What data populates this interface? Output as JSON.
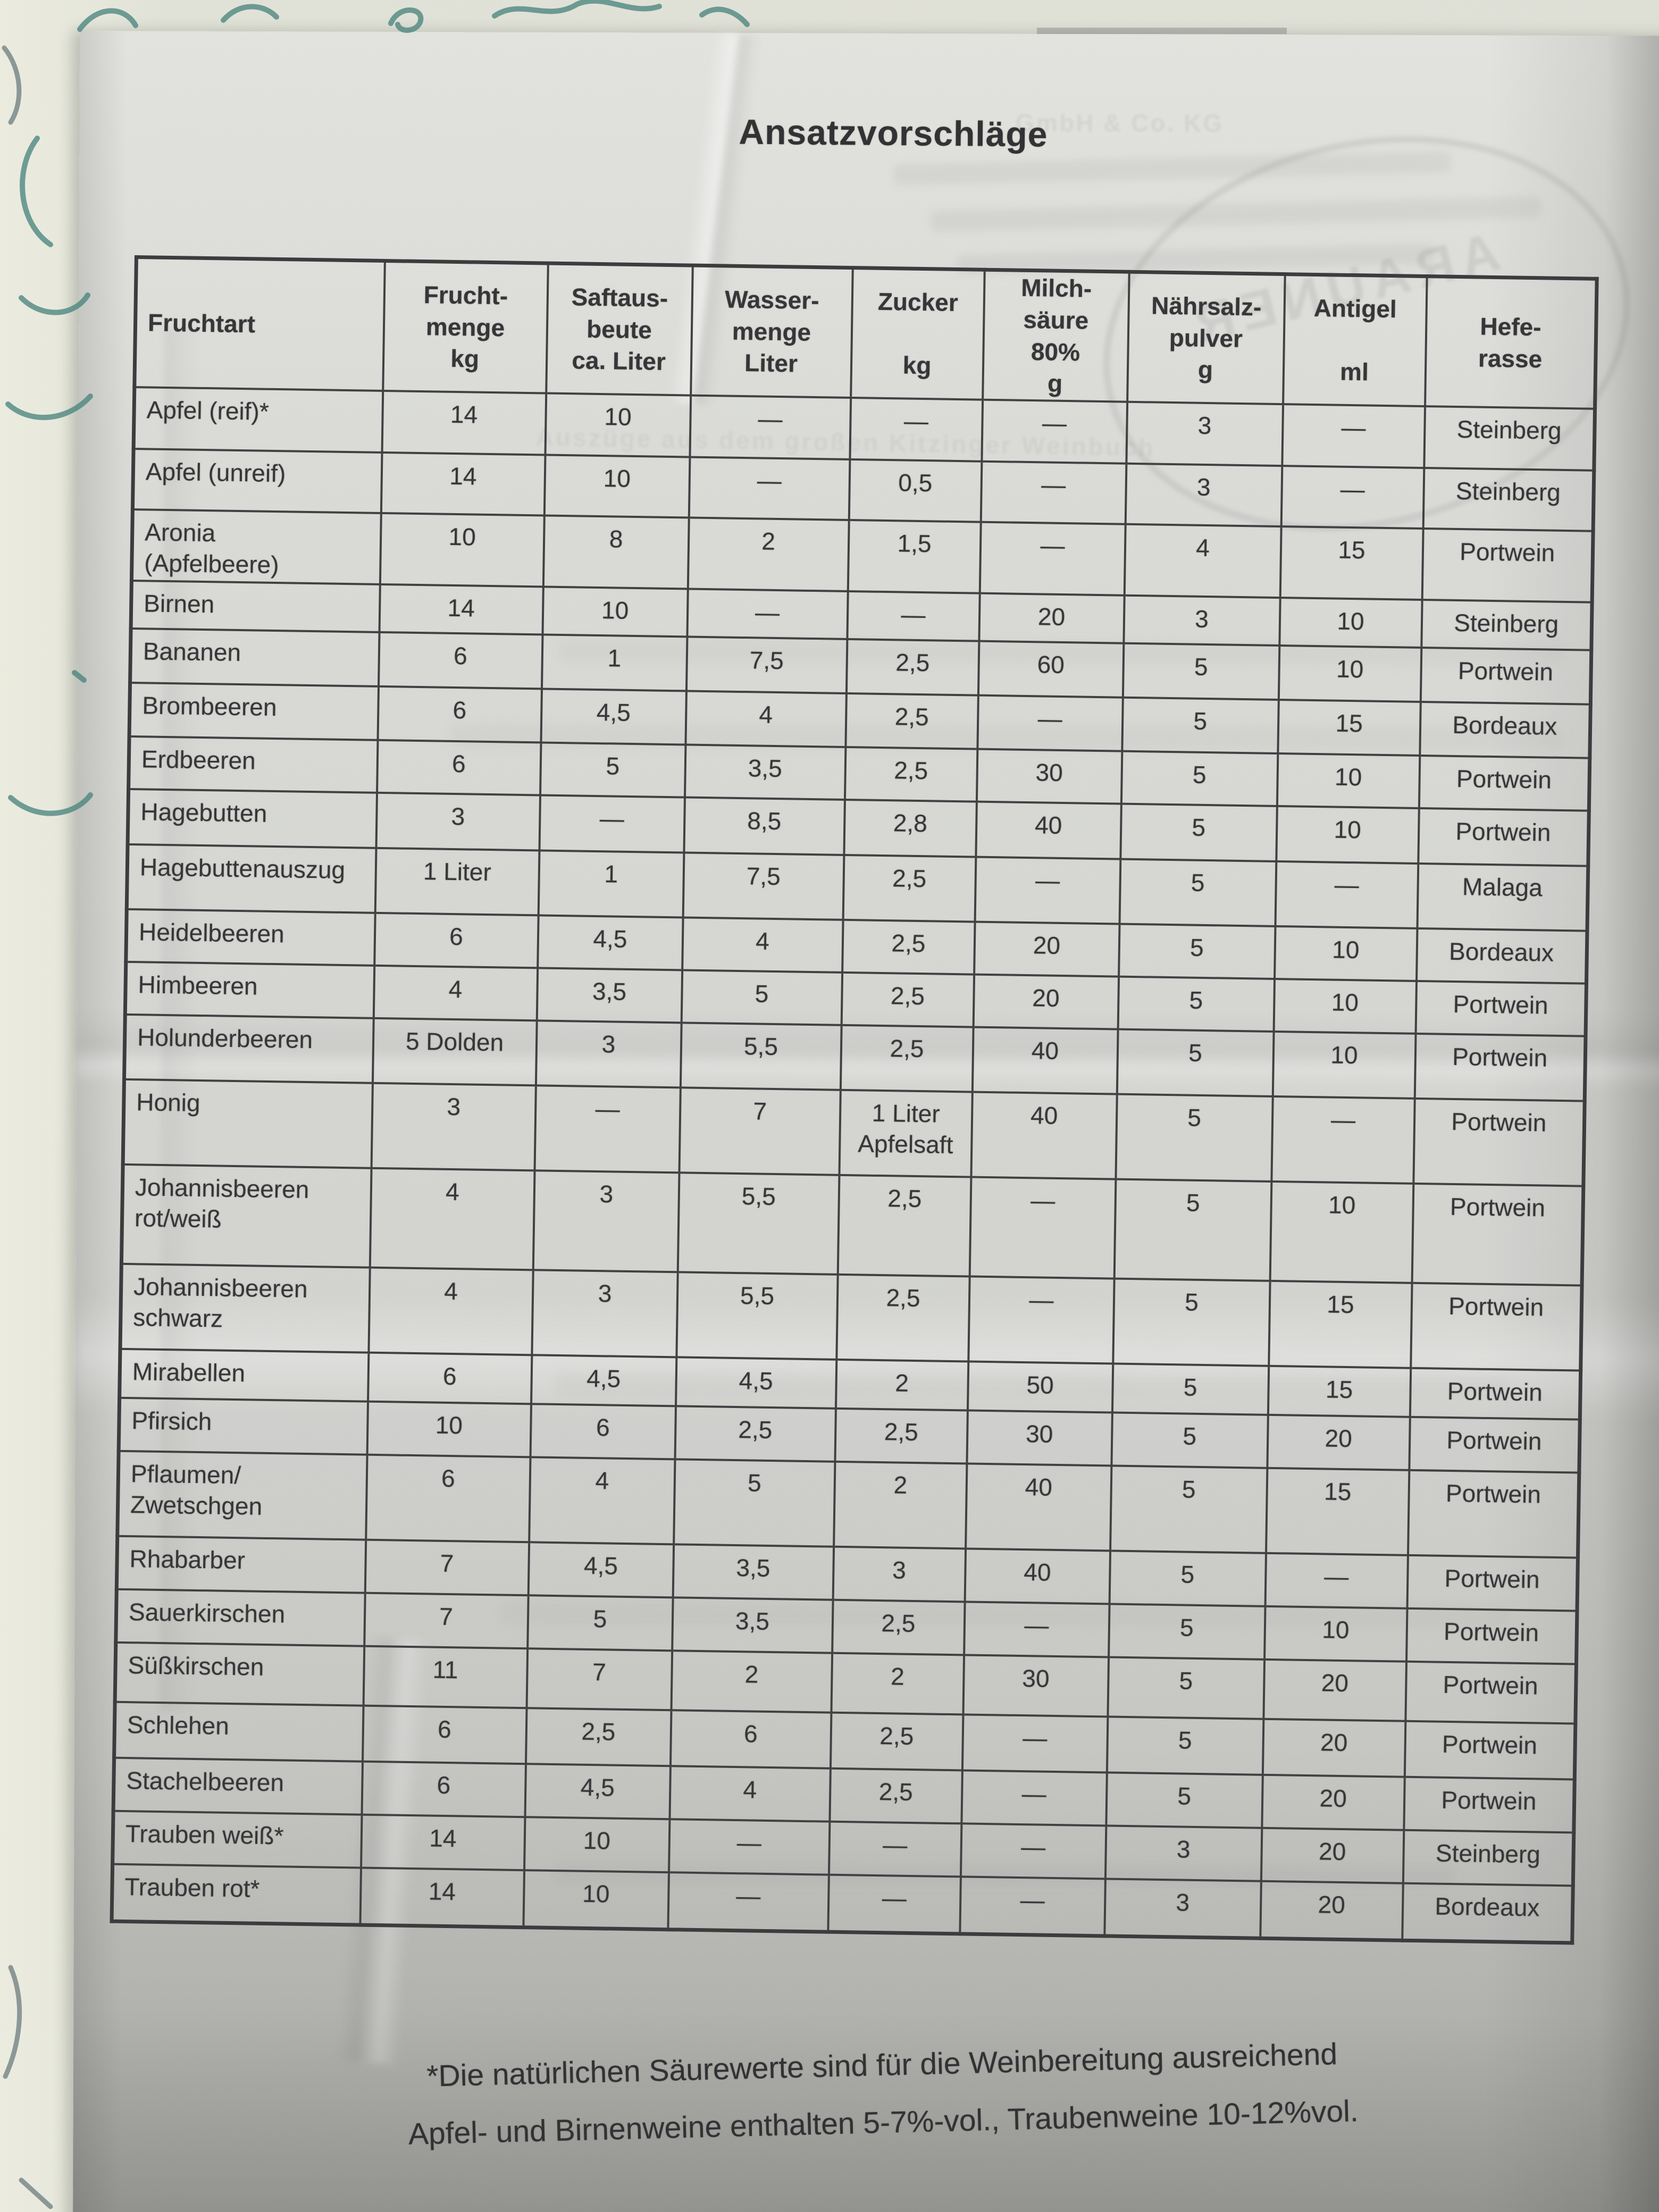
{
  "page": {
    "title": "Ansatzvorschläge",
    "footnote_line1": "*Die natürlichen Säurewerte sind für die Weinbereitung ausreichend",
    "footnote_line2": "Apfel- und Birnenweine enthalten 5-7%-vol., Traubenweine 10-12%vol."
  },
  "bleedthrough": {
    "brand": "ARAUNER",
    "company_suffix": "GmbH & Co. KG",
    "book_line": "Auszüge aus dem großen Kitzinger Weinbuch"
  },
  "table": {
    "columns": [
      {
        "key": "fruchtart",
        "label": "Fruchtart"
      },
      {
        "key": "fruchtmenge",
        "label": "Frucht-\nmenge\nkg"
      },
      {
        "key": "saftausbeute",
        "label": "Saftaus-\nbeute\nca. Liter"
      },
      {
        "key": "wassermenge",
        "label": "Wasser-\nmenge\nLiter"
      },
      {
        "key": "zucker",
        "label": "Zucker\n\nkg"
      },
      {
        "key": "milchsaeure",
        "label": "Milch-\nsäure\n80%\ng"
      },
      {
        "key": "naehrsalz",
        "label": "Nährsalz-\npulver\ng"
      },
      {
        "key": "antigel",
        "label": "Antigel\n\nml"
      },
      {
        "key": "hefe",
        "label": "Hefe-\nrasse"
      }
    ],
    "rows": [
      {
        "fruchtart": "Apfel (reif)*",
        "fruchtmenge": "14",
        "saftausbeute": "10",
        "wassermenge": "—",
        "zucker": "—",
        "milchsaeure": "—",
        "naehrsalz": "3",
        "antigel": "—",
        "hefe": "Steinberg"
      },
      {
        "fruchtart": "Apfel (unreif)",
        "fruchtmenge": "14",
        "saftausbeute": "10",
        "wassermenge": "—",
        "zucker": "0,5",
        "milchsaeure": "—",
        "naehrsalz": "3",
        "antigel": "—",
        "hefe": "Steinberg"
      },
      {
        "fruchtart": "Aronia\n(Apfelbeere)",
        "fruchtmenge": "10",
        "saftausbeute": "8",
        "wassermenge": "2",
        "zucker": "1,5",
        "milchsaeure": "—",
        "naehrsalz": "4",
        "antigel": "15",
        "hefe": "Portwein"
      },
      {
        "fruchtart": "Birnen",
        "fruchtmenge": "14",
        "saftausbeute": "10",
        "wassermenge": "—",
        "zucker": "—",
        "milchsaeure": "20",
        "naehrsalz": "3",
        "antigel": "10",
        "hefe": "Steinberg"
      },
      {
        "fruchtart": "Bananen",
        "fruchtmenge": "6",
        "saftausbeute": "1",
        "wassermenge": "7,5",
        "zucker": "2,5",
        "milchsaeure": "60",
        "naehrsalz": "5",
        "antigel": "10",
        "hefe": "Portwein"
      },
      {
        "fruchtart": "Brombeeren",
        "fruchtmenge": "6",
        "saftausbeute": "4,5",
        "wassermenge": "4",
        "zucker": "2,5",
        "milchsaeure": "—",
        "naehrsalz": "5",
        "antigel": "15",
        "hefe": "Bordeaux"
      },
      {
        "fruchtart": "Erdbeeren",
        "fruchtmenge": "6",
        "saftausbeute": "5",
        "wassermenge": "3,5",
        "zucker": "2,5",
        "milchsaeure": "30",
        "naehrsalz": "5",
        "antigel": "10",
        "hefe": "Portwein"
      },
      {
        "fruchtart": "Hagebutten",
        "fruchtmenge": "3",
        "saftausbeute": "—",
        "wassermenge": "8,5",
        "zucker": "2,8",
        "milchsaeure": "40",
        "naehrsalz": "5",
        "antigel": "10",
        "hefe": "Portwein"
      },
      {
        "fruchtart": "Hagebuttenauszug",
        "fruchtmenge": "1 Liter",
        "saftausbeute": "1",
        "wassermenge": "7,5",
        "zucker": "2,5",
        "milchsaeure": "—",
        "naehrsalz": "5",
        "antigel": "—",
        "hefe": "Malaga"
      },
      {
        "fruchtart": "Heidelbeeren",
        "fruchtmenge": "6",
        "saftausbeute": "4,5",
        "wassermenge": "4",
        "zucker": "2,5",
        "milchsaeure": "20",
        "naehrsalz": "5",
        "antigel": "10",
        "hefe": "Bordeaux"
      },
      {
        "fruchtart": "Himbeeren",
        "fruchtmenge": "4",
        "saftausbeute": "3,5",
        "wassermenge": "5",
        "zucker": "2,5",
        "milchsaeure": "20",
        "naehrsalz": "5",
        "antigel": "10",
        "hefe": "Portwein"
      },
      {
        "fruchtart": "Holunderbeeren",
        "fruchtmenge": "5 Dolden",
        "saftausbeute": "3",
        "wassermenge": "5,5",
        "zucker": "2,5",
        "milchsaeure": "40",
        "naehrsalz": "5",
        "antigel": "10",
        "hefe": "Portwein"
      },
      {
        "fruchtart": "Honig",
        "fruchtmenge": "3",
        "saftausbeute": "—",
        "wassermenge": "7",
        "zucker": "1 Liter\nApfelsaft",
        "milchsaeure": "40",
        "naehrsalz": "5",
        "antigel": "—",
        "hefe": "Portwein"
      },
      {
        "fruchtart": "Johannisbeeren\nrot/weiß",
        "fruchtmenge": "4",
        "saftausbeute": "3",
        "wassermenge": "5,5",
        "zucker": "2,5",
        "milchsaeure": "—",
        "naehrsalz": "5",
        "antigel": "10",
        "hefe": "Portwein"
      },
      {
        "fruchtart": "Johannisbeeren\nschwarz",
        "fruchtmenge": "4",
        "saftausbeute": "3",
        "wassermenge": "5,5",
        "zucker": "2,5",
        "milchsaeure": "—",
        "naehrsalz": "5",
        "antigel": "15",
        "hefe": "Portwein"
      },
      {
        "fruchtart": "Mirabellen",
        "fruchtmenge": "6",
        "saftausbeute": "4,5",
        "wassermenge": "4,5",
        "zucker": "2",
        "milchsaeure": "50",
        "naehrsalz": "5",
        "antigel": "15",
        "hefe": "Portwein"
      },
      {
        "fruchtart": "Pfirsich",
        "fruchtmenge": "10",
        "saftausbeute": "6",
        "wassermenge": "2,5",
        "zucker": "2,5",
        "milchsaeure": "30",
        "naehrsalz": "5",
        "antigel": "20",
        "hefe": "Portwein"
      },
      {
        "fruchtart": "Pflaumen/\nZwetschgen",
        "fruchtmenge": "6",
        "saftausbeute": "4",
        "wassermenge": "5",
        "zucker": "2",
        "milchsaeure": "40",
        "naehrsalz": "5",
        "antigel": "15",
        "hefe": "Portwein"
      },
      {
        "fruchtart": "Rhabarber",
        "fruchtmenge": "7",
        "saftausbeute": "4,5",
        "wassermenge": "3,5",
        "zucker": "3",
        "milchsaeure": "40",
        "naehrsalz": "5",
        "antigel": "—",
        "hefe": "Portwein"
      },
      {
        "fruchtart": "Sauerkirschen",
        "fruchtmenge": "7",
        "saftausbeute": "5",
        "wassermenge": "3,5",
        "zucker": "2,5",
        "milchsaeure": "—",
        "naehrsalz": "5",
        "antigel": "10",
        "hefe": "Portwein"
      },
      {
        "fruchtart": "Süßkirschen",
        "fruchtmenge": "11",
        "saftausbeute": "7",
        "wassermenge": "2",
        "zucker": "2",
        "milchsaeure": "30",
        "naehrsalz": "5",
        "antigel": "20",
        "hefe": "Portwein"
      },
      {
        "fruchtart": "Schlehen",
        "fruchtmenge": "6",
        "saftausbeute": "2,5",
        "wassermenge": "6",
        "zucker": "2,5",
        "milchsaeure": "—",
        "naehrsalz": "5",
        "antigel": "20",
        "hefe": "Portwein"
      },
      {
        "fruchtart": "Stachelbeeren",
        "fruchtmenge": "6",
        "saftausbeute": "4,5",
        "wassermenge": "4",
        "zucker": "2,5",
        "milchsaeure": "—",
        "naehrsalz": "5",
        "antigel": "20",
        "hefe": "Portwein"
      },
      {
        "fruchtart": "Trauben weiß*",
        "fruchtmenge": "14",
        "saftausbeute": "10",
        "wassermenge": "—",
        "zucker": "—",
        "milchsaeure": "—",
        "naehrsalz": "3",
        "antigel": "20",
        "hefe": "Steinberg"
      },
      {
        "fruchtart": "Trauben rot*",
        "fruchtmenge": "14",
        "saftausbeute": "10",
        "wassermenge": "—",
        "zucker": "—",
        "milchsaeure": "—",
        "naehrsalz": "3",
        "antigel": "20",
        "hefe": "Bordeaux"
      }
    ]
  },
  "colors": {
    "paper": "#d6d7d3",
    "under_sheet": "#e9eadf",
    "table_border": "#3e3e40",
    "print_text": "#333335",
    "handwriting_teal": "#41807a"
  }
}
